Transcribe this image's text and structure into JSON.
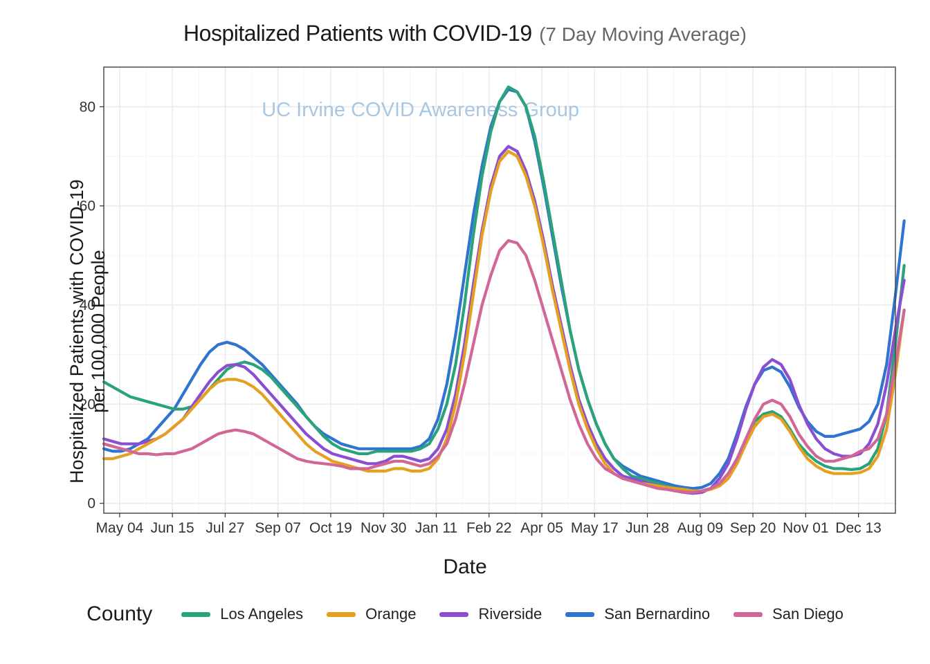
{
  "title_main": "Hospitalized Patients with COVID-19",
  "title_sub": "(7 Day Moving Average)",
  "watermark": "UC Irvine COVID Awareness Group",
  "watermark_color": "#a9c7e2",
  "axis": {
    "x_label": "Date",
    "y_label": "Hospitalized Patients with COVID-19\nper 100,000 People",
    "x_ticks": [
      "May 04",
      "Jun 15",
      "Jul 27",
      "Sep 07",
      "Oct 19",
      "Nov 30",
      "Jan 11",
      "Feb 22",
      "Apr 05",
      "May 17",
      "Jun 28",
      "Aug 09",
      "Sep 20",
      "Nov 01",
      "Dec 13"
    ],
    "y_ticks": [
      0,
      20,
      40,
      60,
      80
    ],
    "y_min": -2,
    "y_max": 88,
    "x_count": 91,
    "tick_fontsize": 21,
    "tick_color": "#333333"
  },
  "plot": {
    "background": "#ffffff",
    "panel_border": "#4d4d4d",
    "grid_color": "#ebebeb",
    "grid_minor": "#f5f5f5",
    "line_width": 4.2
  },
  "legend": {
    "title": "County",
    "items": [
      {
        "name": "Los Angeles",
        "color": "#2aa37a"
      },
      {
        "name": "Orange",
        "color": "#e6a021"
      },
      {
        "name": "Riverside",
        "color": "#8a4ed1"
      },
      {
        "name": "San Bernardino",
        "color": "#2f74d0"
      },
      {
        "name": "San Diego",
        "color": "#d06796"
      }
    ]
  },
  "series": {
    "los_angeles": [
      24.5,
      23.5,
      22.5,
      21.5,
      21,
      20.5,
      20,
      19.5,
      19,
      19,
      19.5,
      21,
      23,
      25,
      27,
      28,
      28.5,
      28,
      27,
      25.5,
      23.5,
      21.5,
      19.5,
      17.5,
      15.5,
      13.5,
      12,
      11,
      10.5,
      10,
      10,
      10.5,
      10.5,
      10.5,
      10.5,
      10.5,
      11,
      12,
      15,
      20,
      28,
      40,
      54,
      66,
      75,
      81,
      84,
      83,
      80,
      74,
      65,
      55,
      45,
      35,
      27,
      21,
      16,
      12,
      9,
      7,
      5.5,
      5,
      4.5,
      4,
      3.5,
      3,
      2.8,
      2.5,
      2.5,
      3,
      4,
      6,
      9,
      13,
      16.5,
      18,
      18.5,
      17.5,
      15,
      12,
      10,
      8.5,
      7.5,
      7,
      7,
      6.8,
      7,
      8,
      11,
      18,
      32,
      48
    ],
    "orange": [
      9,
      9,
      9.5,
      10,
      11,
      12,
      13,
      14,
      15.5,
      17,
      19,
      21,
      23,
      24.5,
      25,
      25,
      24.5,
      23.5,
      22,
      20,
      18,
      16,
      14,
      12,
      10.5,
      9.5,
      8.5,
      8,
      7.5,
      7,
      6.5,
      6.5,
      6.5,
      7,
      7,
      6.5,
      6.5,
      7,
      9,
      13,
      20,
      30,
      42,
      54,
      63,
      69,
      71,
      70,
      66,
      60,
      52,
      43,
      35,
      27,
      20,
      15,
      11,
      8,
      6,
      5,
      4.5,
      4,
      3.8,
      3.5,
      3.2,
      3,
      2.8,
      2.5,
      2.5,
      2.8,
      3.5,
      5,
      8,
      12,
      15.5,
      17.5,
      18,
      17,
      14.5,
      11.5,
      9,
      7.5,
      6.5,
      6,
      6,
      6,
      6.2,
      7,
      9.5,
      15,
      26,
      39
    ],
    "riverside": [
      13,
      12.5,
      12,
      12,
      12,
      12.5,
      13,
      14,
      15.5,
      17,
      19.5,
      22,
      24.5,
      26.5,
      27.8,
      28,
      27.5,
      26,
      24,
      22,
      20,
      18,
      16,
      14,
      12.5,
      11,
      10,
      9.5,
      9,
      8.5,
      8,
      8,
      8.5,
      9.5,
      9.5,
      9,
      8.5,
      9,
      11,
      15,
      22,
      32,
      44,
      55,
      64,
      70,
      72,
      71,
      67,
      61,
      53,
      44,
      36,
      28,
      21,
      16,
      12,
      9,
      7,
      5.5,
      5,
      4.5,
      4,
      3.5,
      3,
      2.5,
      2.2,
      2,
      2.2,
      3,
      5,
      8,
      13,
      19,
      24,
      27.5,
      29,
      28,
      25,
      20,
      16,
      13,
      11,
      10,
      9.5,
      9.5,
      10,
      12,
      16,
      24,
      35,
      45
    ],
    "san_bernardino": [
      11,
      10.5,
      10.5,
      11,
      12,
      13,
      15,
      17,
      19,
      22,
      25,
      28,
      30.5,
      32,
      32.5,
      32,
      31,
      29.5,
      28,
      26,
      24,
      22,
      20,
      17.5,
      15.5,
      14,
      13,
      12,
      11.5,
      11,
      11,
      11,
      11,
      11,
      11,
      11,
      11.5,
      13,
      17,
      24,
      34,
      46,
      58,
      68,
      76,
      81,
      83.5,
      83,
      80,
      73,
      64,
      54,
      44,
      35,
      27,
      21,
      16,
      12,
      9,
      7.5,
      6.5,
      5.5,
      5,
      4.5,
      4,
      3.5,
      3.2,
      3,
      3.2,
      4,
      6,
      9,
      14,
      19.5,
      24,
      26.8,
      27.5,
      26.5,
      23.5,
      19.5,
      16.5,
      14.5,
      13.5,
      13.5,
      14,
      14.5,
      15,
      16.5,
      20,
      28,
      42,
      57
    ],
    "san_diego": [
      12,
      11.5,
      11,
      10.5,
      10,
      10,
      9.8,
      10,
      10,
      10.5,
      11,
      12,
      13,
      14,
      14.5,
      14.8,
      14.5,
      14,
      13,
      12,
      11,
      10,
      9,
      8.5,
      8.2,
      8,
      7.8,
      7.5,
      7,
      7,
      7,
      7.5,
      8,
      8.5,
      8.5,
      8,
      7.5,
      8,
      9.5,
      12,
      17,
      24,
      32,
      40,
      46,
      51,
      53,
      52.5,
      50,
      45,
      39,
      33,
      27,
      21,
      16,
      12,
      9,
      7,
      6,
      5,
      4.5,
      4,
      3.5,
      3,
      2.8,
      2.5,
      2.3,
      2.2,
      2.5,
      3,
      4,
      6,
      9,
      13,
      17,
      20,
      20.8,
      20,
      17.5,
      14,
      11.5,
      9.5,
      8.5,
      8.5,
      9,
      9.5,
      10.5,
      11,
      13,
      18,
      28,
      39
    ]
  }
}
